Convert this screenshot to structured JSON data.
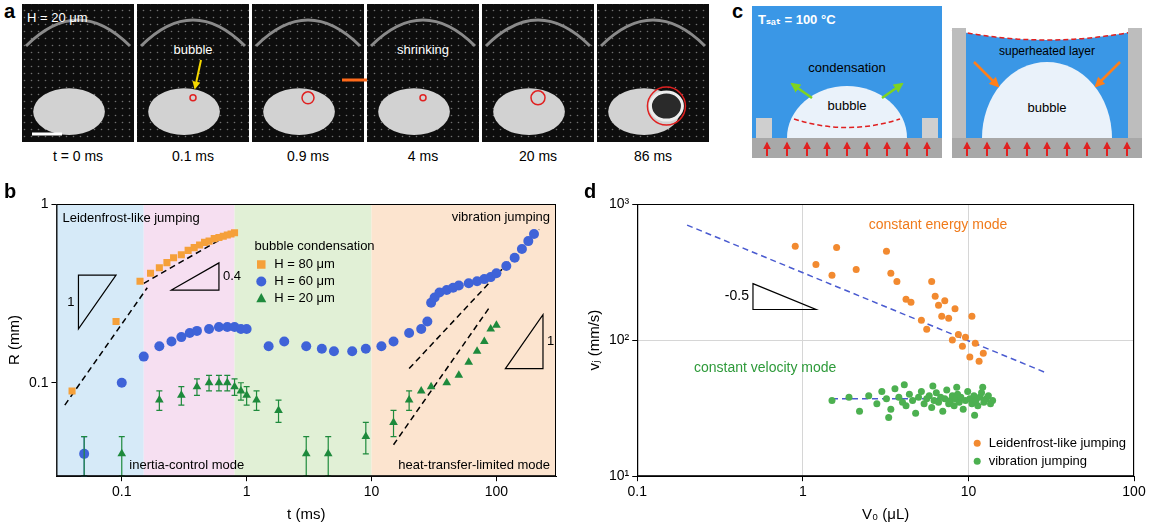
{
  "panel_a": {
    "letter": "a",
    "frames": [
      {
        "caption": "t = 0 ms",
        "text": "H = 20 μm"
      },
      {
        "caption": "0.1 ms",
        "text": "bubble"
      },
      {
        "caption": "0.9 ms"
      },
      {
        "caption": "4 ms",
        "text": "shrinking"
      },
      {
        "caption": "20 ms"
      },
      {
        "caption": "86 ms"
      }
    ]
  },
  "panel_c": {
    "letter": "c",
    "diagrams": [
      {
        "texts": [
          "Tₛₐₜ = 100 °C",
          "condensation",
          "bubble"
        ]
      },
      {
        "texts": [
          "superheated layer",
          "bubble"
        ]
      }
    ]
  },
  "chart_data": [
    {
      "panel": "b",
      "type": "scatter",
      "x_label": "t (ms)",
      "y_label": "R (mm)",
      "log": true,
      "grid": false,
      "legend": "upper center",
      "xlim": [
        0.03,
        300
      ],
      "ylim": [
        0.03,
        1
      ],
      "xticks": [
        0.1,
        1,
        10,
        100
      ],
      "yticks": [
        0.1,
        1
      ],
      "regions": [
        {
          "from": 0.03,
          "to": 0.15,
          "color": "#d6eaf8"
        },
        {
          "from": 0.15,
          "to": 0.8,
          "color": "#f6dff1"
        },
        {
          "from": 0.8,
          "to": 10,
          "color": "#e1f0d6"
        },
        {
          "from": 10,
          "to": 300,
          "color": "#fce4cf"
        }
      ],
      "series": [
        {
          "name": "H = 80 μm",
          "color": "#f5a03a",
          "marker": "square",
          "x": [
            0.04,
            0.09,
            0.14,
            0.17,
            0.2,
            0.23,
            0.26,
            0.3,
            0.34,
            0.38,
            0.42,
            0.46,
            0.5,
            0.55,
            0.6,
            0.65,
            0.7,
            0.75,
            0.8
          ],
          "values": [
            0.09,
            0.22,
            0.37,
            0.41,
            0.44,
            0.47,
            0.5,
            0.52,
            0.55,
            0.57,
            0.59,
            0.61,
            0.62,
            0.64,
            0.65,
            0.66,
            0.67,
            0.68,
            0.69
          ]
        },
        {
          "name": "H = 60 μm",
          "color": "#3f63d8",
          "marker": "circle",
          "x": [
            0.05,
            0.1,
            0.15,
            0.2,
            0.25,
            0.3,
            0.35,
            0.4,
            0.5,
            0.6,
            0.7,
            0.8,
            0.9,
            1.0,
            1.5,
            2,
            3,
            4,
            5,
            7,
            9,
            12,
            15,
            20,
            25,
            28,
            30,
            32,
            35,
            40,
            45,
            50,
            60,
            70,
            80,
            90,
            100,
            120,
            140,
            160,
            180,
            200
          ],
          "values": [
            0.04,
            0.1,
            0.14,
            0.16,
            0.17,
            0.18,
            0.19,
            0.195,
            0.2,
            0.205,
            0.205,
            0.205,
            0.2,
            0.2,
            0.16,
            0.17,
            0.16,
            0.155,
            0.15,
            0.15,
            0.155,
            0.16,
            0.17,
            0.19,
            0.2,
            0.22,
            0.28,
            0.3,
            0.32,
            0.33,
            0.34,
            0.35,
            0.36,
            0.37,
            0.38,
            0.39,
            0.41,
            0.45,
            0.5,
            0.56,
            0.62,
            0.68
          ],
          "errors": [
            0.01,
            null,
            null,
            null,
            null,
            null,
            null,
            null,
            null,
            null,
            null,
            null,
            null,
            null,
            null,
            null,
            null,
            null,
            null,
            null,
            null,
            null,
            null,
            null,
            null,
            null,
            null,
            null,
            null,
            null,
            null,
            null,
            null,
            null,
            null,
            null,
            null,
            null,
            null,
            null,
            null,
            null
          ]
        },
        {
          "name": "H = 20 μm",
          "color": "#1e8a3c",
          "marker": "triangle",
          "x": [
            0.05,
            0.1,
            0.2,
            0.3,
            0.4,
            0.5,
            0.6,
            0.7,
            0.8,
            0.9,
            1.0,
            1.2,
            1.8,
            3,
            4.5,
            9,
            15,
            20,
            25,
            30,
            40,
            50,
            60,
            70,
            80,
            90,
            100
          ],
          "values": [
            0.04,
            0.04,
            0.08,
            0.085,
            0.095,
            0.1,
            0.1,
            0.1,
            0.095,
            0.09,
            0.085,
            0.08,
            0.07,
            0.04,
            0.04,
            0.05,
            0.06,
            0.08,
            0.09,
            0.095,
            0.1,
            0.11,
            0.13,
            0.15,
            0.17,
            0.2,
            0.21
          ],
          "errors": [
            0.01,
            0.01,
            0.01,
            0.01,
            0.01,
            0.01,
            0.01,
            0.01,
            0.01,
            0.01,
            0.01,
            0.01,
            0.01,
            0.01,
            0.01,
            0.01,
            0.01,
            0.01,
            null,
            null,
            null,
            null,
            null,
            null,
            null,
            null,
            null
          ]
        }
      ],
      "fit_lines": [
        {
          "x": [
            0.035,
            0.16
          ],
          "values": [
            0.075,
            0.34
          ],
          "color": "#000000",
          "line_style": "dashed"
        },
        {
          "x": [
            0.15,
            0.85
          ],
          "values": [
            0.36,
            0.72
          ],
          "color": "#000000",
          "line_style": "dashed"
        },
        {
          "x": [
            20,
            220
          ],
          "values": [
            0.12,
            0.72
          ],
          "color": "#000000",
          "line_style": "dashed"
        },
        {
          "x": [
            15,
            90
          ],
          "values": [
            0.045,
            0.27
          ],
          "color": "#000000",
          "line_style": "dashed"
        }
      ],
      "slopes": [
        1,
        0.4,
        1
      ],
      "annotations": [
        {
          "text": "Leidenfrost-like jumping"
        },
        {
          "text": "bubble condensation"
        },
        {
          "text": "vibration jumping"
        },
        {
          "text": "inertia-control mode"
        },
        {
          "text": "heat-transfer-limited mode"
        }
      ]
    },
    {
      "panel": "d",
      "type": "scatter",
      "x_label": "V₀ (μL)",
      "y_label": "vⱼ (mm/s)",
      "log": true,
      "grid": true,
      "legend": "lower right",
      "xlim": [
        0.1,
        100
      ],
      "ylim": [
        10,
        1000
      ],
      "xticks": [
        0.1,
        1,
        10,
        100
      ],
      "yticks": [
        {
          "value": 10,
          "label": "10¹"
        },
        {
          "value": 100,
          "label": "10²"
        },
        {
          "value": 1000,
          "label": "10³"
        }
      ],
      "series": [
        {
          "name": "Leidenfrost-like jumping",
          "color": "#f28a30",
          "marker": "circle",
          "x": [
            0.9,
            1.2,
            1.5,
            1.6,
            2.1,
            3.2,
            3.4,
            3.7,
            4.2,
            4.5,
            5.2,
            5.6,
            6.0,
            6.3,
            6.6,
            6.9,
            7.2,
            7.6,
            8.0,
            8.3,
            8.7,
            9.2,
            9.6,
            10.2,
            10.5,
            11.0,
            11.6,
            12.3
          ],
          "values": [
            490,
            360,
            300,
            480,
            330,
            450,
            310,
            270,
            200,
            190,
            140,
            120,
            270,
            210,
            180,
            150,
            195,
            145,
            100,
            170,
            110,
            90,
            105,
            75,
            150,
            95,
            70,
            80
          ]
        },
        {
          "name": "vibration jumping",
          "color": "#4cb050",
          "marker": "circle",
          "x": [
            1.5,
            1.9,
            2.2,
            2.5,
            2.8,
            3.0,
            3.2,
            3.4,
            3.6,
            3.8,
            4.0,
            4.2,
            4.4,
            4.6,
            4.8,
            5.0,
            5.2,
            5.4,
            5.6,
            5.8,
            6.0,
            6.2,
            6.4,
            6.6,
            6.8,
            7.0,
            7.2,
            7.4,
            7.6,
            7.8,
            8.0,
            8.2,
            8.4,
            8.6,
            8.8,
            9.0,
            9.3,
            9.6,
            9.9,
            10.2,
            10.5,
            10.8,
            11.1,
            11.4,
            11.7,
            12.0,
            12.4,
            12.8,
            13.2,
            13.6,
            14.0,
            4.1,
            6.1,
            8.5,
            10.9,
            3.3,
            12.2
          ],
          "values": [
            36,
            38,
            30,
            39,
            34,
            42,
            37,
            31,
            44,
            38,
            35,
            33,
            40,
            36,
            29,
            38,
            42,
            34,
            37,
            39,
            32,
            36,
            41,
            35,
            38,
            30,
            37,
            43,
            34,
            36,
            39,
            33,
            37,
            40,
            35,
            38,
            31,
            36,
            42,
            37,
            34,
            39,
            36,
            33,
            38,
            41,
            35,
            37,
            39,
            34,
            36,
            47,
            46,
            45,
            28,
            27,
            45
          ]
        }
      ],
      "fit_lines": [
        {
          "x": [
            0.2,
            30
          ],
          "values": [
            700,
            57
          ],
          "color": "#4a5bd0",
          "line_style": "dashed"
        },
        {
          "x": [
            1.5,
            14
          ],
          "values": [
            37,
            37
          ],
          "color": "#4a5bd0",
          "line_style": "dashed"
        }
      ],
      "slopes": [
        -0.5
      ],
      "annotations": [
        {
          "text": "constant energy mode",
          "color": "#f07a1a"
        },
        {
          "text": "constant velocity mode",
          "color": "#2e9a3a"
        }
      ]
    }
  ]
}
